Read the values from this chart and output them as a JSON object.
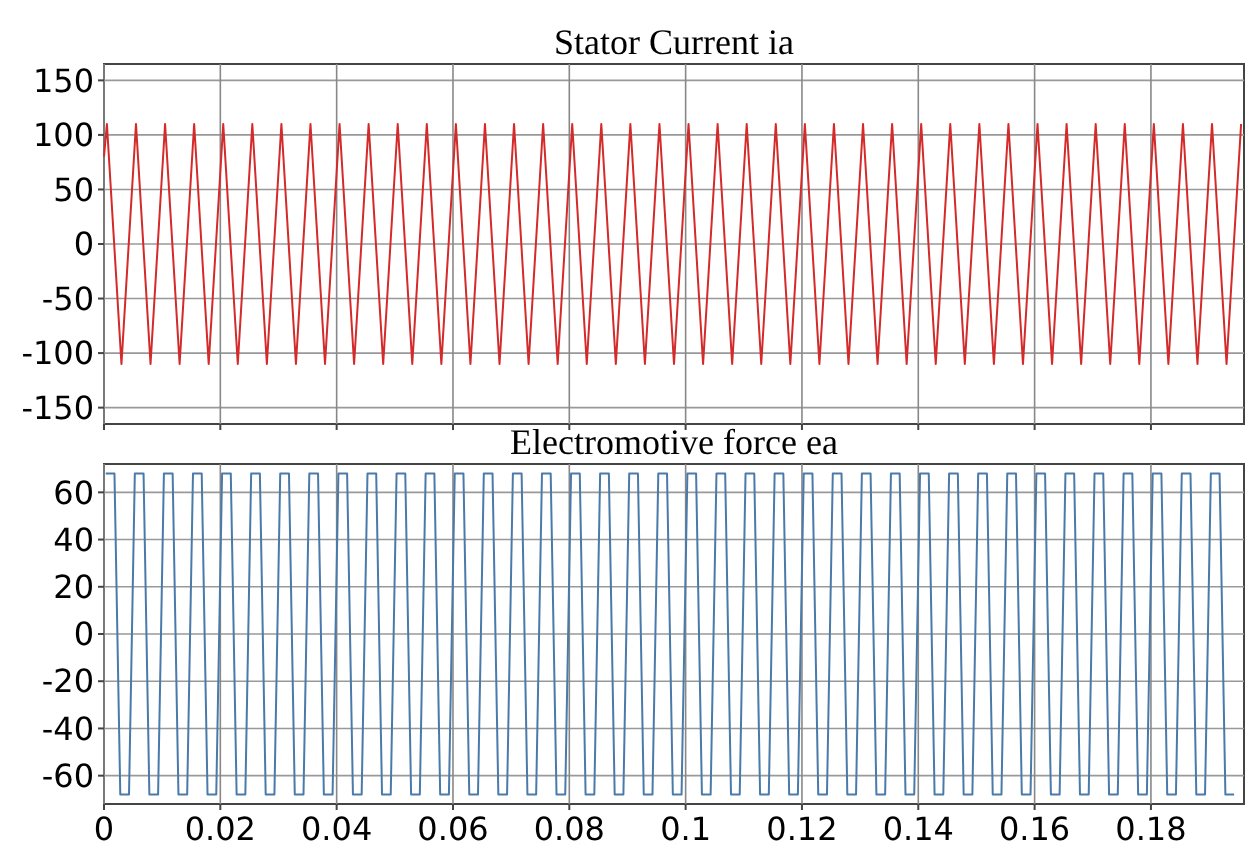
{
  "chart_data": [
    {
      "type": "line",
      "title": "Stator Current ia",
      "xlim": [
        0,
        0.196
      ],
      "xticks": [
        0,
        0.02,
        0.04,
        0.06,
        0.08,
        0.1,
        0.12,
        0.14,
        0.16,
        0.18
      ],
      "ylim": [
        -165,
        165
      ],
      "yticks": [
        -150,
        -100,
        -50,
        0,
        50,
        100,
        150
      ],
      "grid": true,
      "tick_labels": "y",
      "series": [
        {
          "color": "#d42a2a",
          "x": [
            0,
            0.0005,
            0.003,
            0.0055,
            0.008,
            0.0105,
            0.013,
            0.0155,
            0.018,
            0.0205,
            0.023,
            0.0255,
            0.028,
            0.0305,
            0.033,
            0.0355,
            0.038,
            0.0405,
            0.043,
            0.0455,
            0.048,
            0.0505,
            0.053,
            0.0555,
            0.058,
            0.0605,
            0.063,
            0.0655,
            0.068,
            0.0705,
            0.073,
            0.0755,
            0.078,
            0.0805,
            0.083,
            0.0855,
            0.088,
            0.0905,
            0.093,
            0.0955,
            0.098,
            0.1005,
            0.103,
            0.1055,
            0.108,
            0.1105,
            0.113,
            0.1155,
            0.118,
            0.1205,
            0.123,
            0.1255,
            0.128,
            0.1305,
            0.133,
            0.1355,
            0.138,
            0.1405,
            0.143,
            0.1455,
            0.148,
            0.1505,
            0.153,
            0.1555,
            0.158,
            0.1605,
            0.163,
            0.1655,
            0.168,
            0.1705,
            0.173,
            0.1755,
            0.178,
            0.1805,
            0.183,
            0.1855,
            0.188,
            0.1905,
            0.193,
            0.1955
          ],
          "values": [
            80,
            110,
            -110,
            110,
            -110,
            110,
            -110,
            110,
            -110,
            110,
            -110,
            110,
            -110,
            110,
            -110,
            110,
            -110,
            110,
            -110,
            110,
            -110,
            110,
            -110,
            110,
            -110,
            110,
            -110,
            110,
            -110,
            110,
            -110,
            110,
            -110,
            110,
            -110,
            110,
            -110,
            110,
            -110,
            110,
            -110,
            110,
            -110,
            110,
            -110,
            110,
            -110,
            110,
            -110,
            110,
            -110,
            110,
            -110,
            110,
            -110,
            110,
            -110,
            110,
            -110,
            110,
            -110,
            110,
            -110,
            110,
            -110,
            110,
            -110,
            110,
            -110,
            110,
            -110,
            110,
            -110,
            110,
            -110,
            110,
            -110,
            110,
            -110,
            110
          ]
        }
      ]
    },
    {
      "type": "line",
      "title": "Electromotive force ea",
      "xlim": [
        0,
        0.196
      ],
      "xticks": [
        0,
        0.02,
        0.04,
        0.06,
        0.08,
        0.1,
        0.12,
        0.14,
        0.16,
        0.18
      ],
      "ylim": [
        -72,
        72
      ],
      "yticks": [
        -60,
        -40,
        -20,
        0,
        20,
        40,
        60
      ],
      "grid": true,
      "series": [
        {
          "color": "#4a7aaa",
          "x": [
            0.0003,
            0.0018,
            0.0028,
            0.0043,
            0.0053,
            0.0068,
            0.0078,
            0.0093,
            0.0103,
            0.0118,
            0.0128,
            0.0143,
            0.0153,
            0.0168,
            0.0178,
            0.0193,
            0.0203,
            0.0218,
            0.0228,
            0.0243,
            0.0253,
            0.0268,
            0.0278,
            0.0293,
            0.0303,
            0.0318,
            0.0328,
            0.0343,
            0.0353,
            0.0368,
            0.0378,
            0.0393,
            0.0403,
            0.0418,
            0.0428,
            0.0443,
            0.0453,
            0.0468,
            0.0478,
            0.0493,
            0.0503,
            0.0518,
            0.0528,
            0.0543,
            0.0553,
            0.0568,
            0.0578,
            0.0593,
            0.0603,
            0.0618,
            0.0628,
            0.0643,
            0.0653,
            0.0668,
            0.0678,
            0.0693,
            0.0703,
            0.0718,
            0.0728,
            0.0743,
            0.0753,
            0.0768,
            0.0778,
            0.0793,
            0.0803,
            0.0818,
            0.0828,
            0.0843,
            0.0853,
            0.0868,
            0.0878,
            0.0893,
            0.0903,
            0.0918,
            0.0928,
            0.0943,
            0.0953,
            0.0968,
            0.0978,
            0.0993,
            0.1003,
            0.1018,
            0.1028,
            0.1043,
            0.1053,
            0.1068,
            0.1078,
            0.1093,
            0.1103,
            0.1118,
            0.1128,
            0.1143,
            0.1153,
            0.1168,
            0.1178,
            0.1193,
            0.1203,
            0.1218,
            0.1228,
            0.1243,
            0.1253,
            0.1268,
            0.1278,
            0.1293,
            0.1303,
            0.1318,
            0.1328,
            0.1343,
            0.1353,
            0.1368,
            0.1378,
            0.1393,
            0.1403,
            0.1418,
            0.1428,
            0.1443,
            0.1453,
            0.1468,
            0.1478,
            0.1493,
            0.1503,
            0.1518,
            0.1528,
            0.1543,
            0.1553,
            0.1568,
            0.1578,
            0.1593,
            0.1603,
            0.1618,
            0.1628,
            0.1643,
            0.1653,
            0.1668,
            0.1678,
            0.1693,
            0.1703,
            0.1718,
            0.1728,
            0.1743,
            0.1753,
            0.1768,
            0.1778,
            0.1793,
            0.1803,
            0.1818,
            0.1828,
            0.1843,
            0.1853,
            0.1868,
            0.1878,
            0.1893,
            0.1903,
            0.1918,
            0.1928,
            0.1943
          ],
          "values": [
            68,
            68,
            -68,
            -68,
            68,
            68,
            -68,
            -68,
            68,
            68,
            -68,
            -68,
            68,
            68,
            -68,
            -68,
            68,
            68,
            -68,
            -68,
            68,
            68,
            -68,
            -68,
            68,
            68,
            -68,
            -68,
            68,
            68,
            -68,
            -68,
            68,
            68,
            -68,
            -68,
            68,
            68,
            -68,
            -68,
            68,
            68,
            -68,
            -68,
            68,
            68,
            -68,
            -68,
            68,
            68,
            -68,
            -68,
            68,
            68,
            -68,
            -68,
            68,
            68,
            -68,
            -68,
            68,
            68,
            -68,
            -68,
            68,
            68,
            -68,
            -68,
            68,
            68,
            -68,
            -68,
            68,
            68,
            -68,
            -68,
            68,
            68,
            -68,
            -68,
            68,
            68,
            -68,
            -68,
            68,
            68,
            -68,
            -68,
            68,
            68,
            -68,
            -68,
            68,
            68,
            -68,
            -68,
            68,
            68,
            -68,
            -68,
            68,
            68,
            -68,
            -68,
            68,
            68,
            -68,
            -68,
            68,
            68,
            -68,
            -68,
            68,
            68,
            -68,
            -68,
            68,
            68,
            -68,
            -68,
            68,
            68,
            -68,
            -68,
            68,
            68,
            -68,
            -68,
            68,
            68,
            -68,
            -68,
            68,
            68,
            -68,
            -68,
            68,
            68,
            -68,
            -68,
            68,
            68,
            -68,
            -68,
            68,
            68,
            -68,
            -68,
            68,
            68,
            -68,
            -68,
            68,
            68,
            -68,
            -68
          ]
        }
      ]
    }
  ]
}
